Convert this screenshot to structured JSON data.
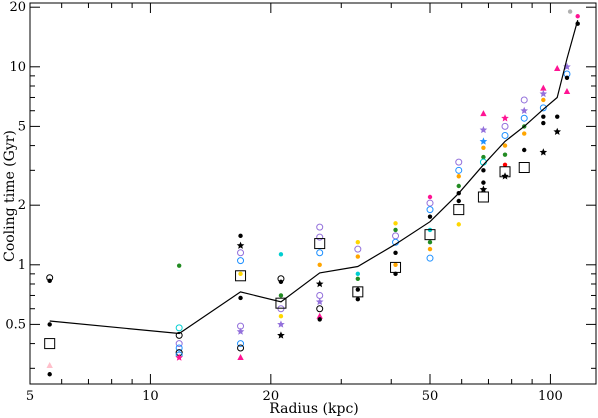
{
  "chart_data": {
    "type": "scatter",
    "title": "",
    "xlabel": "Radius (kpc)",
    "ylabel": "Cooling time (Gyr)",
    "xscale": "log",
    "yscale": "log",
    "xlim": [
      5,
      130
    ],
    "ylim": [
      0.25,
      21
    ],
    "xticks": [
      {
        "value": 5,
        "label": "5"
      },
      {
        "value": 10,
        "label": "10"
      },
      {
        "value": 20,
        "label": "20"
      },
      {
        "value": 50,
        "label": "50"
      },
      {
        "value": 100,
        "label": "100"
      }
    ],
    "yticks": [
      {
        "value": 0.5,
        "label": "0.5"
      },
      {
        "value": 1,
        "label": "1"
      },
      {
        "value": 2,
        "label": "2"
      },
      {
        "value": 5,
        "label": "5"
      },
      {
        "value": 10,
        "label": "10"
      },
      {
        "value": 20,
        "label": "20"
      }
    ],
    "grid": false,
    "legend": "none",
    "mean_line": {
      "color": "#000000",
      "x": [
        5.6,
        11.8,
        16.8,
        21.2,
        26.5,
        33,
        41,
        50,
        59,
        68,
        77,
        86,
        96,
        104,
        110,
        117
      ],
      "y": [
        0.52,
        0.45,
        0.73,
        0.65,
        0.91,
        0.98,
        1.27,
        1.65,
        2.3,
        3.2,
        4.2,
        5.0,
        6.1,
        7.0,
        11.0,
        17.2
      ]
    },
    "open_squares": {
      "color": "#000000",
      "x": [
        5.6,
        16.8,
        21.2,
        26.5,
        33,
        41,
        50,
        59,
        68,
        77,
        86
      ],
      "y": [
        0.4,
        0.88,
        0.64,
        1.28,
        0.73,
        0.97,
        1.42,
        1.9,
        2.2,
        2.95,
        3.1
      ]
    },
    "scatter_points": [
      {
        "x": 5.6,
        "y": 0.86,
        "color": "#000000",
        "marker": "circle"
      },
      {
        "x": 5.6,
        "y": 0.83,
        "color": "#000000",
        "marker": "dot"
      },
      {
        "x": 5.6,
        "y": 0.5,
        "color": "#000000",
        "marker": "dot"
      },
      {
        "x": 5.6,
        "y": 0.31,
        "color": "#ffc0cb",
        "marker": "triangle"
      },
      {
        "x": 5.6,
        "y": 0.28,
        "color": "#000000",
        "marker": "dot"
      },
      {
        "x": 11.8,
        "y": 0.99,
        "color": "#228b22",
        "marker": "dot"
      },
      {
        "x": 11.8,
        "y": 0.48,
        "color": "#00ced1",
        "marker": "circle"
      },
      {
        "x": 11.8,
        "y": 0.44,
        "color": "#000000",
        "marker": "circle"
      },
      {
        "x": 11.8,
        "y": 0.4,
        "color": "#9370db",
        "marker": "circle"
      },
      {
        "x": 11.8,
        "y": 0.38,
        "color": "#1e90ff",
        "marker": "circle"
      },
      {
        "x": 11.8,
        "y": 0.36,
        "color": "#000000",
        "marker": "circle"
      },
      {
        "x": 11.8,
        "y": 0.35,
        "color": "#1e90ff",
        "marker": "circle"
      },
      {
        "x": 11.8,
        "y": 0.34,
        "color": "#ff1493",
        "marker": "star"
      },
      {
        "x": 16.8,
        "y": 1.4,
        "color": "#000000",
        "marker": "dot"
      },
      {
        "x": 16.8,
        "y": 1.25,
        "color": "#000000",
        "marker": "star"
      },
      {
        "x": 16.8,
        "y": 1.15,
        "color": "#9370db",
        "marker": "circle"
      },
      {
        "x": 16.8,
        "y": 1.05,
        "color": "#1e90ff",
        "marker": "circle"
      },
      {
        "x": 16.8,
        "y": 0.9,
        "color": "#ffd700",
        "marker": "dot"
      },
      {
        "x": 16.8,
        "y": 0.68,
        "color": "#000000",
        "marker": "dot"
      },
      {
        "x": 16.8,
        "y": 0.49,
        "color": "#9370db",
        "marker": "circle"
      },
      {
        "x": 16.8,
        "y": 0.46,
        "color": "#9370db",
        "marker": "star"
      },
      {
        "x": 16.8,
        "y": 0.4,
        "color": "#1e90ff",
        "marker": "circle"
      },
      {
        "x": 16.8,
        "y": 0.38,
        "color": "#000000",
        "marker": "circle"
      },
      {
        "x": 16.8,
        "y": 0.34,
        "color": "#ff1493",
        "marker": "triangle"
      },
      {
        "x": 21.2,
        "y": 1.13,
        "color": "#00ced1",
        "marker": "dot"
      },
      {
        "x": 21.2,
        "y": 0.85,
        "color": "#000000",
        "marker": "circle"
      },
      {
        "x": 21.2,
        "y": 0.82,
        "color": "#000000",
        "marker": "dot"
      },
      {
        "x": 21.2,
        "y": 0.7,
        "color": "#228b22",
        "marker": "dot"
      },
      {
        "x": 21.2,
        "y": 0.6,
        "color": "#9370db",
        "marker": "circle"
      },
      {
        "x": 21.2,
        "y": 0.55,
        "color": "#ffd700",
        "marker": "dot"
      },
      {
        "x": 21.2,
        "y": 0.5,
        "color": "#9370db",
        "marker": "star"
      },
      {
        "x": 21.2,
        "y": 0.44,
        "color": "#000000",
        "marker": "star"
      },
      {
        "x": 26.5,
        "y": 1.55,
        "color": "#9370db",
        "marker": "circle"
      },
      {
        "x": 26.5,
        "y": 1.38,
        "color": "#9370db",
        "marker": "circle"
      },
      {
        "x": 26.5,
        "y": 1.15,
        "color": "#1e90ff",
        "marker": "circle"
      },
      {
        "x": 26.5,
        "y": 1.0,
        "color": "#ffa500",
        "marker": "dot"
      },
      {
        "x": 26.5,
        "y": 0.8,
        "color": "#000000",
        "marker": "star"
      },
      {
        "x": 26.5,
        "y": 0.7,
        "color": "#9370db",
        "marker": "circle"
      },
      {
        "x": 26.5,
        "y": 0.65,
        "color": "#9370db",
        "marker": "star"
      },
      {
        "x": 26.5,
        "y": 0.6,
        "color": "#000000",
        "marker": "circle"
      },
      {
        "x": 26.5,
        "y": 0.55,
        "color": "#ff1493",
        "marker": "triangle"
      },
      {
        "x": 26.5,
        "y": 0.53,
        "color": "#000000",
        "marker": "dot"
      },
      {
        "x": 33,
        "y": 1.3,
        "color": "#ffd700",
        "marker": "dot"
      },
      {
        "x": 33,
        "y": 1.2,
        "color": "#9370db",
        "marker": "circle"
      },
      {
        "x": 33,
        "y": 1.1,
        "color": "#ffa500",
        "marker": "dot"
      },
      {
        "x": 33,
        "y": 0.9,
        "color": "#00ced1",
        "marker": "dot"
      },
      {
        "x": 33,
        "y": 0.85,
        "color": "#228b22",
        "marker": "dot"
      },
      {
        "x": 33,
        "y": 0.75,
        "color": "#000000",
        "marker": "dot"
      },
      {
        "x": 33,
        "y": 0.67,
        "color": "#000000",
        "marker": "dot"
      },
      {
        "x": 41,
        "y": 1.62,
        "color": "#ffd700",
        "marker": "dot"
      },
      {
        "x": 41,
        "y": 1.5,
        "color": "#228b22",
        "marker": "dot"
      },
      {
        "x": 41,
        "y": 1.4,
        "color": "#9370db",
        "marker": "circle"
      },
      {
        "x": 41,
        "y": 1.3,
        "color": "#1e90ff",
        "marker": "circle"
      },
      {
        "x": 41,
        "y": 1.15,
        "color": "#000000",
        "marker": "dot"
      },
      {
        "x": 41,
        "y": 1.0,
        "color": "#ffa500",
        "marker": "dot"
      },
      {
        "x": 41,
        "y": 0.9,
        "color": "#000000",
        "marker": "dot"
      },
      {
        "x": 50,
        "y": 2.2,
        "color": "#ff1493",
        "marker": "dot"
      },
      {
        "x": 50,
        "y": 2.05,
        "color": "#9370db",
        "marker": "circle"
      },
      {
        "x": 50,
        "y": 1.9,
        "color": "#1e90ff",
        "marker": "circle"
      },
      {
        "x": 50,
        "y": 1.75,
        "color": "#000000",
        "marker": "dot"
      },
      {
        "x": 50,
        "y": 1.5,
        "color": "#00ced1",
        "marker": "dot"
      },
      {
        "x": 50,
        "y": 1.3,
        "color": "#228b22",
        "marker": "dot"
      },
      {
        "x": 50,
        "y": 1.2,
        "color": "#ffa500",
        "marker": "dot"
      },
      {
        "x": 50,
        "y": 1.08,
        "color": "#1e90ff",
        "marker": "circle"
      },
      {
        "x": 59,
        "y": 3.3,
        "color": "#9370db",
        "marker": "circle"
      },
      {
        "x": 59,
        "y": 3.0,
        "color": "#1e90ff",
        "marker": "circle"
      },
      {
        "x": 59,
        "y": 2.8,
        "color": "#ffa500",
        "marker": "dot"
      },
      {
        "x": 59,
        "y": 2.5,
        "color": "#228b22",
        "marker": "dot"
      },
      {
        "x": 59,
        "y": 2.3,
        "color": "#000000",
        "marker": "dot"
      },
      {
        "x": 59,
        "y": 2.1,
        "color": "#000000",
        "marker": "dot"
      },
      {
        "x": 59,
        "y": 1.6,
        "color": "#ffd700",
        "marker": "dot"
      },
      {
        "x": 68,
        "y": 5.8,
        "color": "#ff1493",
        "marker": "triangle"
      },
      {
        "x": 68,
        "y": 4.8,
        "color": "#9370db",
        "marker": "star"
      },
      {
        "x": 68,
        "y": 4.2,
        "color": "#1e90ff",
        "marker": "star"
      },
      {
        "x": 68,
        "y": 3.9,
        "color": "#ffa500",
        "marker": "dot"
      },
      {
        "x": 68,
        "y": 3.5,
        "color": "#228b22",
        "marker": "dot"
      },
      {
        "x": 68,
        "y": 3.3,
        "color": "#00ced1",
        "marker": "circle"
      },
      {
        "x": 68,
        "y": 3.0,
        "color": "#000000",
        "marker": "dot"
      },
      {
        "x": 68,
        "y": 2.6,
        "color": "#000000",
        "marker": "dot"
      },
      {
        "x": 68,
        "y": 2.4,
        "color": "#000000",
        "marker": "star"
      },
      {
        "x": 77,
        "y": 5.5,
        "color": "#ff1493",
        "marker": "star"
      },
      {
        "x": 77,
        "y": 5.0,
        "color": "#9370db",
        "marker": "circle"
      },
      {
        "x": 77,
        "y": 4.5,
        "color": "#1e90ff",
        "marker": "circle"
      },
      {
        "x": 77,
        "y": 4.0,
        "color": "#ffa500",
        "marker": "dot"
      },
      {
        "x": 77,
        "y": 3.6,
        "color": "#228b22",
        "marker": "dot"
      },
      {
        "x": 77,
        "y": 3.2,
        "color": "#ff0000",
        "marker": "dot"
      },
      {
        "x": 77,
        "y": 2.8,
        "color": "#000000",
        "marker": "star"
      },
      {
        "x": 86,
        "y": 6.8,
        "color": "#9370db",
        "marker": "circle"
      },
      {
        "x": 86,
        "y": 6.0,
        "color": "#9370db",
        "marker": "star"
      },
      {
        "x": 86,
        "y": 5.5,
        "color": "#1e90ff",
        "marker": "circle"
      },
      {
        "x": 86,
        "y": 5.0,
        "color": "#228b22",
        "marker": "dot"
      },
      {
        "x": 86,
        "y": 4.6,
        "color": "#ffa500",
        "marker": "dot"
      },
      {
        "x": 86,
        "y": 3.8,
        "color": "#000000",
        "marker": "dot"
      },
      {
        "x": 96,
        "y": 7.8,
        "color": "#ff1493",
        "marker": "triangle"
      },
      {
        "x": 96,
        "y": 7.3,
        "color": "#9370db",
        "marker": "star"
      },
      {
        "x": 96,
        "y": 6.8,
        "color": "#ffa500",
        "marker": "dot"
      },
      {
        "x": 96,
        "y": 6.2,
        "color": "#1e90ff",
        "marker": "circle"
      },
      {
        "x": 96,
        "y": 5.6,
        "color": "#000000",
        "marker": "dot"
      },
      {
        "x": 96,
        "y": 5.2,
        "color": "#000000",
        "marker": "dot"
      },
      {
        "x": 96,
        "y": 3.7,
        "color": "#000000",
        "marker": "star"
      },
      {
        "x": 104,
        "y": 9.8,
        "color": "#ff1493",
        "marker": "triangle"
      },
      {
        "x": 104,
        "y": 5.6,
        "color": "#000000",
        "marker": "dot"
      },
      {
        "x": 104,
        "y": 4.7,
        "color": "#000000",
        "marker": "star"
      },
      {
        "x": 110,
        "y": 10.0,
        "color": "#9370db",
        "marker": "star"
      },
      {
        "x": 110,
        "y": 9.2,
        "color": "#1e90ff",
        "marker": "circle"
      },
      {
        "x": 110,
        "y": 8.8,
        "color": "#000000",
        "marker": "dot"
      },
      {
        "x": 110,
        "y": 7.5,
        "color": "#ff1493",
        "marker": "triangle"
      },
      {
        "x": 112,
        "y": 19.0,
        "color": "#b0b0b0",
        "marker": "dot"
      },
      {
        "x": 117,
        "y": 18.0,
        "color": "#ff1493",
        "marker": "dot"
      },
      {
        "x": 117,
        "y": 16.5,
        "color": "#000000",
        "marker": "dot"
      }
    ]
  }
}
